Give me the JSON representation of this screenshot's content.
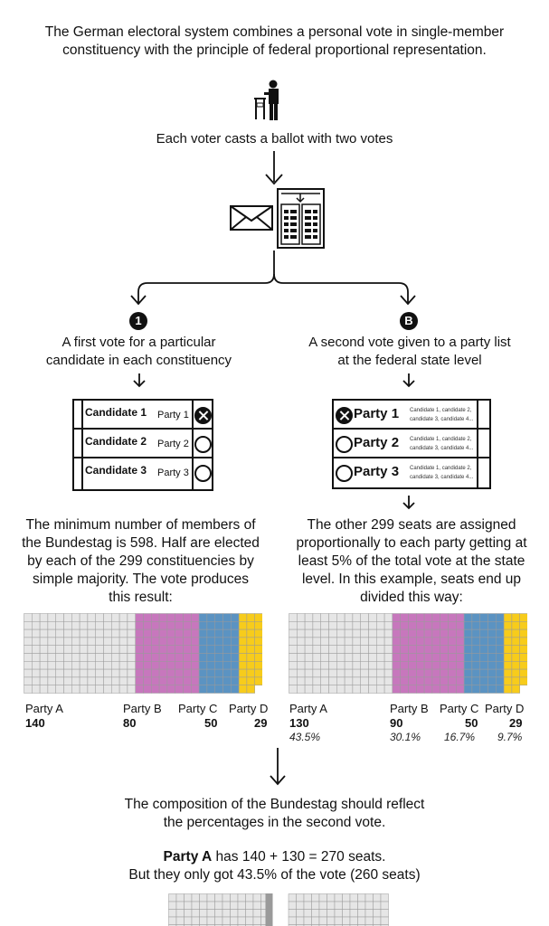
{
  "intro": {
    "line1": "The German electoral system combines a personal vote in single-member",
    "line2": "constituency with the principle of federal proportional representation."
  },
  "voter_caption": "Each voter casts a ballot with two votes",
  "left_column": {
    "badge": "1",
    "heading_line1": "A first vote for a particular",
    "heading_line2": "candidate in each constituency",
    "ballot": [
      {
        "candidate": "Candidate 1",
        "party": "Party 1",
        "marked": true
      },
      {
        "candidate": "Candidate 2",
        "party": "Party 2",
        "marked": false
      },
      {
        "candidate": "Candidate 3",
        "party": "Party 3",
        "marked": false
      }
    ],
    "para_lines": [
      "The minimum number of members of",
      "the Bundestag is 598. Half are elected",
      "by each of the 299 constituencies by",
      "simple majority. The vote produces",
      "this result:"
    ],
    "parties": [
      {
        "label": "Party A",
        "seats": "140"
      },
      {
        "label": "Party B",
        "seats": "80"
      },
      {
        "label": "Party C",
        "seats": "50"
      },
      {
        "label": "Party D",
        "seats": "29"
      }
    ]
  },
  "right_column": {
    "badge": "B",
    "heading_line1": "A second vote given to a party list",
    "heading_line2": "at the federal state level",
    "ballot": [
      {
        "party": "Party 1",
        "candidates_line1": "Candidate 1, candidate 2,",
        "candidates_line2": "candidate 3, candidate 4...",
        "marked": true
      },
      {
        "party": "Party 2",
        "candidates_line1": "Candidate 1, candidate 2,",
        "candidates_line2": "candidate 3, candidate 4...",
        "marked": false
      },
      {
        "party": "Party 3",
        "candidates_line1": "Candidate 1, candidate 2,",
        "candidates_line2": "candidate 3, candidate 4...",
        "marked": false
      }
    ],
    "para_lines": [
      "The other 299 seats are assigned",
      "proportionally to each party getting at",
      "least 5% of the total vote at the state",
      "level. In this example, seats end up",
      "divided this way:"
    ],
    "parties": [
      {
        "label": "Party A",
        "seats": "130",
        "pct": "43.5%"
      },
      {
        "label": "Party B",
        "seats": "90",
        "pct": "30.1%"
      },
      {
        "label": "Party C",
        "seats": "50",
        "pct": "16.7%"
      },
      {
        "label": "Party D",
        "seats": "29",
        "pct": "9.7%"
      }
    ]
  },
  "colors": {
    "party_a": "#e6e6e6",
    "party_b": "#c777bd",
    "party_c": "#5b93c2",
    "party_d": "#f7cc1b",
    "grid_line": "#9a9a9a"
  },
  "footer": {
    "line1": "The composition of the Bundestag should reflect",
    "line2": "the percentages in the second vote.",
    "party_strong": "Party A",
    "line3_rest": " has 140 + 130 = 270 seats.",
    "line4": "But they only got 43.5% of the vote (260 seats)"
  },
  "chart_data": [
    {
      "type": "waffle",
      "title": "",
      "categories": [
        "Party A",
        "Party B",
        "Party C",
        "Party D"
      ],
      "values": [
        140,
        80,
        50,
        29
      ]
    },
    {
      "type": "waffle",
      "title": "",
      "categories": [
        "Party A",
        "Party B",
        "Party C",
        "Party D"
      ],
      "values": [
        130,
        90,
        50,
        29
      ],
      "percentages": [
        "43.5%",
        "30.1%",
        "16.7%",
        "9.7%"
      ]
    }
  ]
}
